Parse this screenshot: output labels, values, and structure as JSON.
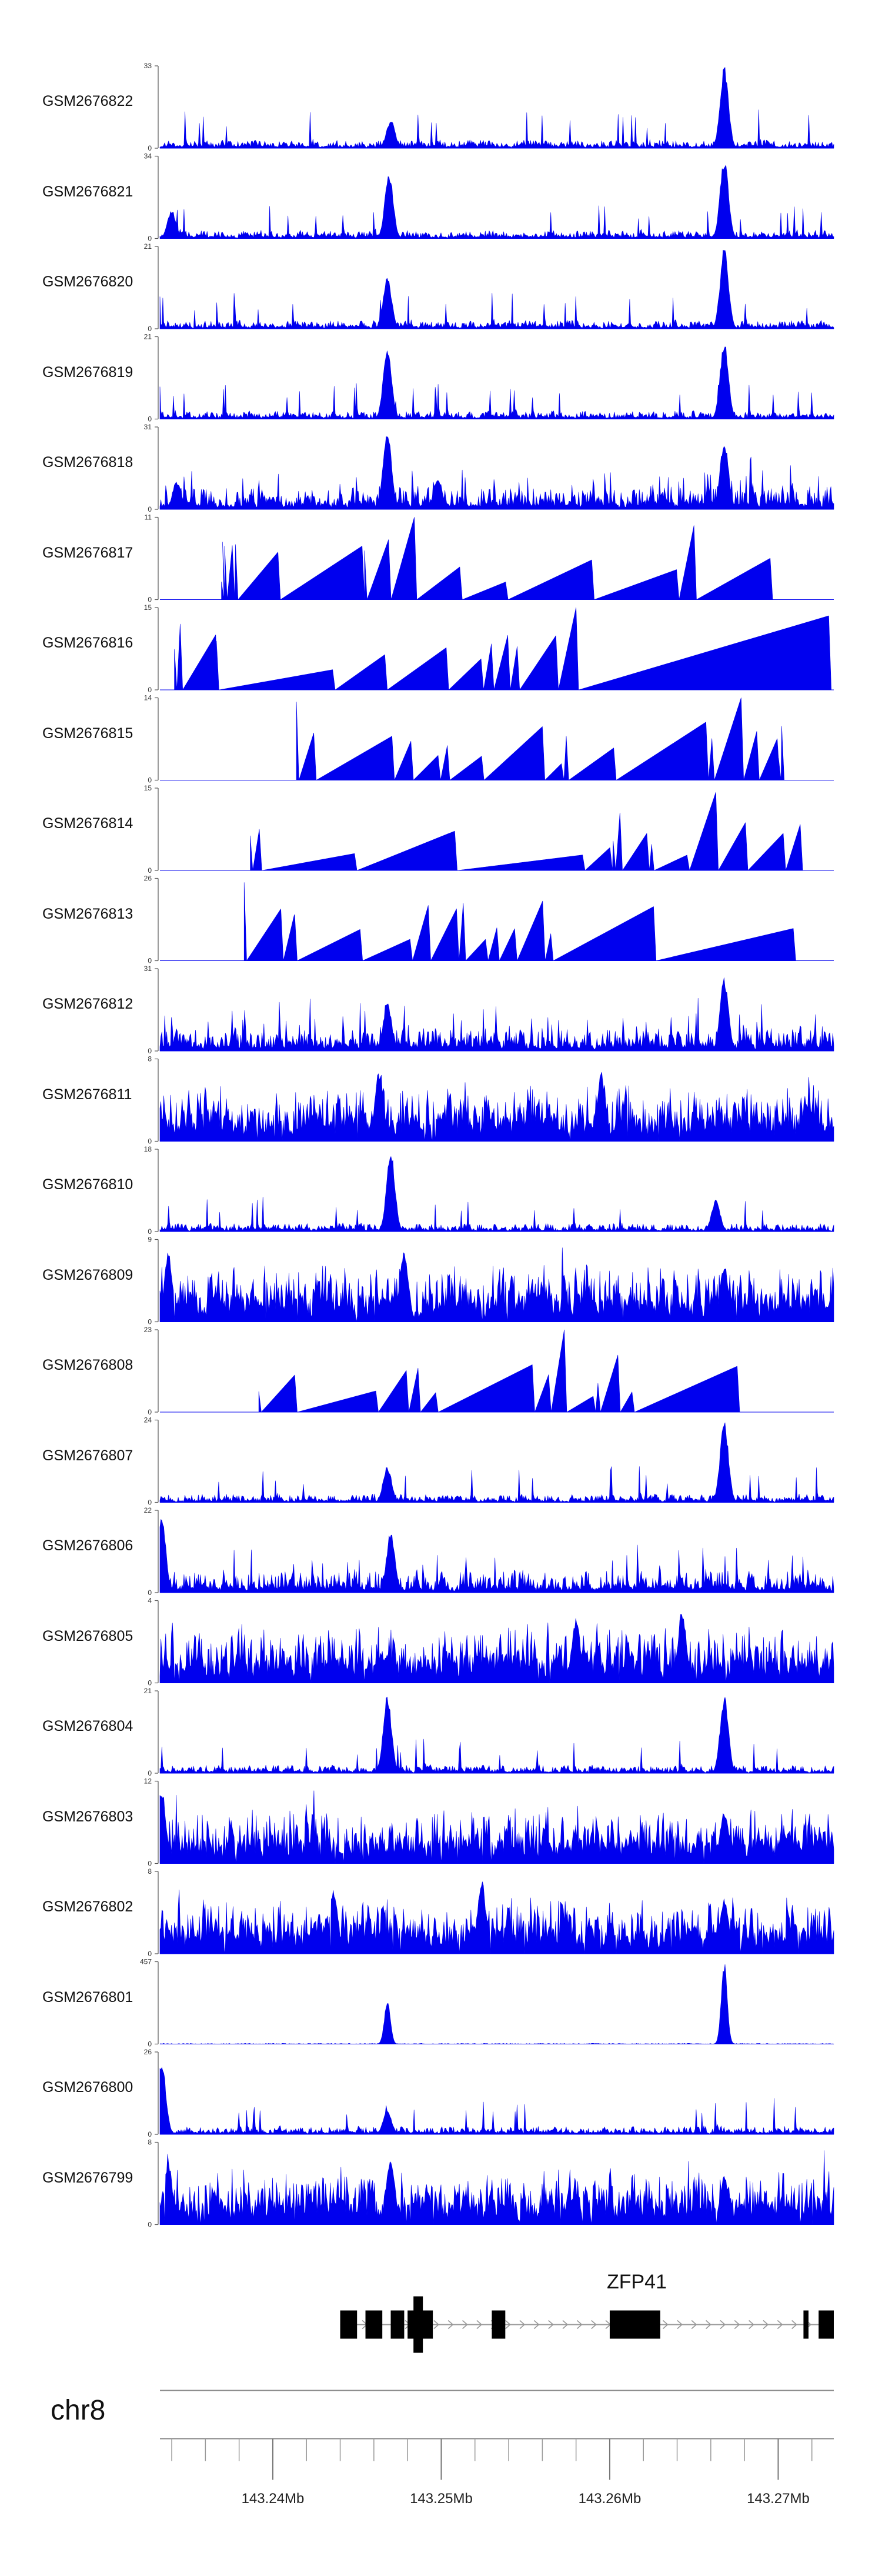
{
  "chart_data": {
    "type": "area",
    "title": "",
    "xlabel": "",
    "ylabel": "",
    "xlim": [
      143.2333,
      143.2733
    ],
    "tracks": [
      {
        "name": "GSM2676822",
        "ymax": 33,
        "style": "low",
        "peaks": [
          [
            143.247,
            0.35
          ],
          [
            143.2668,
            1.0
          ]
        ]
      },
      {
        "name": "GSM2676821",
        "ymax": 34,
        "style": "low",
        "peaks": [
          [
            143.234,
            0.35
          ],
          [
            143.2469,
            0.8
          ],
          [
            143.2668,
            1.0
          ]
        ]
      },
      {
        "name": "GSM2676820",
        "ymax": 21,
        "style": "low",
        "peaks": [
          [
            143.2468,
            0.65
          ],
          [
            143.2668,
            1.0
          ]
        ]
      },
      {
        "name": "GSM2676819",
        "ymax": 21,
        "style": "low",
        "peaks": [
          [
            143.2468,
            0.85
          ],
          [
            143.2668,
            0.95
          ]
        ]
      },
      {
        "name": "GSM2676818",
        "ymax": 31,
        "style": "mid",
        "peaks": [
          [
            143.2343,
            0.35
          ],
          [
            143.2468,
            1.0
          ],
          [
            143.2498,
            0.4
          ],
          [
            143.2668,
            0.85
          ]
        ]
      },
      {
        "name": "GSM2676817",
        "ymax": 11,
        "style": "sparse",
        "peaks": [
          [
            143.2453,
            0.65
          ],
          [
            143.2484,
            1.0
          ],
          [
            143.265,
            0.9
          ]
        ]
      },
      {
        "name": "GSM2676816",
        "ymax": 15,
        "style": "sparse",
        "peaks": [
          [
            143.258,
            1.0
          ],
          [
            143.273,
            0.9
          ],
          [
            143.2345,
            0.8
          ]
        ]
      },
      {
        "name": "GSM2676815",
        "ymax": 14,
        "style": "sparse",
        "peaks": [
          [
            143.2414,
            0.95
          ],
          [
            143.2678,
            1.0
          ],
          [
            143.256,
            0.65
          ]
        ]
      },
      {
        "name": "GSM2676814",
        "ymax": 15,
        "style": "sparse",
        "peaks": [
          [
            143.2392,
            0.5
          ],
          [
            143.2622,
            0.45
          ],
          [
            143.2663,
            0.95
          ],
          [
            143.2703,
            0.45
          ]
        ]
      },
      {
        "name": "GSM2676813",
        "ymax": 26,
        "style": "sparse",
        "peaks": [
          [
            143.2383,
            0.95
          ],
          [
            143.2413,
            0.55
          ],
          [
            143.2533,
            0.4
          ]
        ]
      },
      {
        "name": "GSM2676812",
        "ymax": 31,
        "style": "mid",
        "peaks": [
          [
            143.2468,
            0.6
          ],
          [
            143.2668,
            0.9
          ]
        ]
      },
      {
        "name": "GSM2676811",
        "ymax": 8,
        "style": "dense",
        "peaks": [
          [
            143.2463,
            0.85
          ],
          [
            143.2595,
            0.85
          ]
        ]
      },
      {
        "name": "GSM2676810",
        "ymax": 18,
        "style": "low",
        "peaks": [
          [
            143.247,
            1.0
          ],
          [
            143.2663,
            0.4
          ]
        ]
      },
      {
        "name": "GSM2676809",
        "ymax": 9,
        "style": "dense",
        "peaks": [
          [
            143.2338,
            0.85
          ],
          [
            143.2478,
            0.9
          ],
          [
            143.2668,
            0.7
          ]
        ]
      },
      {
        "name": "GSM2676808",
        "ymax": 23,
        "style": "sparse",
        "peaks": [
          [
            143.2573,
            1.0
          ],
          [
            143.2413,
            0.45
          ],
          [
            143.2593,
            0.35
          ]
        ]
      },
      {
        "name": "GSM2676807",
        "ymax": 24,
        "style": "low",
        "peaks": [
          [
            143.2468,
            0.45
          ],
          [
            143.2668,
            1.0
          ]
        ]
      },
      {
        "name": "GSM2676806",
        "ymax": 22,
        "style": "mid",
        "peaks": [
          [
            143.2334,
            0.95
          ],
          [
            143.247,
            0.75
          ]
        ]
      },
      {
        "name": "GSM2676805",
        "ymax": 4,
        "style": "dense",
        "peaks": [
          [
            143.258,
            0.8
          ],
          [
            143.2643,
            0.9
          ]
        ]
      },
      {
        "name": "GSM2676804",
        "ymax": 21,
        "style": "low",
        "peaks": [
          [
            143.2468,
            0.95
          ],
          [
            143.2668,
            0.95
          ]
        ]
      },
      {
        "name": "GSM2676803",
        "ymax": 12,
        "style": "dense",
        "peaks": [
          [
            143.2334,
            0.95
          ],
          [
            143.2668,
            0.65
          ]
        ]
      },
      {
        "name": "GSM2676802",
        "ymax": 8,
        "style": "dense",
        "peaks": [
          [
            143.2436,
            0.8
          ],
          [
            143.2524,
            0.9
          ],
          [
            143.2668,
            0.7
          ]
        ]
      },
      {
        "name": "GSM2676801",
        "ymax": 457,
        "style": "flat",
        "peaks": [
          [
            143.2468,
            0.55
          ],
          [
            143.2668,
            1.0
          ]
        ]
      },
      {
        "name": "GSM2676800",
        "ymax": 26,
        "style": "low",
        "peaks": [
          [
            143.2334,
            0.9
          ],
          [
            143.2468,
            0.3
          ]
        ]
      },
      {
        "name": "GSM2676799",
        "ymax": 8,
        "style": "dense",
        "peaks": [
          [
            143.2338,
            0.75
          ],
          [
            143.247,
            0.85
          ],
          [
            143.2668,
            0.6
          ]
        ]
      }
    ],
    "gene": {
      "name": "ZFP41",
      "strand": "+",
      "start": 143.244,
      "end": 143.2733,
      "exons": [
        [
          143.244,
          143.245
        ],
        [
          143.2455,
          143.2465
        ],
        [
          143.247,
          143.2478
        ],
        [
          143.248,
          143.2495
        ],
        [
          143.253,
          143.2538
        ],
        [
          143.26,
          143.263
        ],
        [
          143.2715,
          143.2718
        ],
        [
          143.2724,
          143.2733
        ]
      ]
    },
    "chromosome": "chr8",
    "axis": {
      "ticks": [
        143.24,
        143.25,
        143.26,
        143.27
      ],
      "tick_labels": [
        "143.24Mb",
        "143.25Mb",
        "143.26Mb",
        "143.27Mb"
      ],
      "minor_step": 0.002
    }
  },
  "colors": {
    "signal": "#0000ee",
    "gene": "#000000",
    "axis": "#888888",
    "intron_arrow": "#999999"
  }
}
